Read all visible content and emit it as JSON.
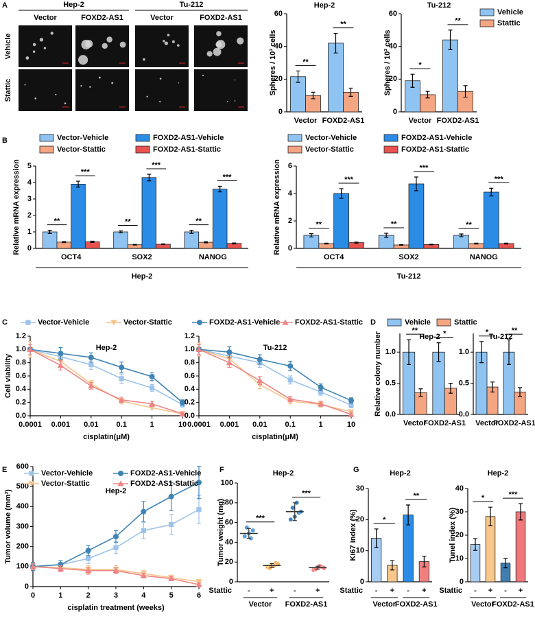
{
  "panel_labels": [
    "A",
    "B",
    "C",
    "D",
    "E",
    "F",
    "G"
  ],
  "panel_a": {
    "cell_lines": [
      "Hep-2",
      "Tu-212"
    ],
    "columns": [
      "Vector",
      "FOXD2-AS1",
      "Vector",
      "FOXD2-AS1"
    ],
    "rows": [
      "Vehicle",
      "Stattic"
    ]
  },
  "chart_data": [
    {
      "type": "bar",
      "title": "Hep-2",
      "ylabel": "Spheres / 10³ cells",
      "categories": [
        "Vector",
        "FOXD2-AS1"
      ],
      "series": [
        {
          "color": "#8fc4f2",
          "values": [
            21.5,
            42
          ],
          "errors": [
            3.5,
            6
          ]
        },
        {
          "color": "#f4a582",
          "values": [
            10,
            12
          ],
          "errors": [
            2,
            2.5
          ]
        }
      ],
      "ylim": [
        0,
        60
      ],
      "yticks": [
        0,
        20,
        40,
        60
      ],
      "significance": [
        [
          "**"
        ],
        [
          "**"
        ]
      ]
    },
    {
      "type": "bar",
      "title": "Tu-212",
      "ylabel": "Spheres / 10³ cells",
      "categories": [
        "Vector",
        "FOXD2-AS1"
      ],
      "series": [
        {
          "name": "Vehicle",
          "color": "#8fc4f2",
          "values": [
            19,
            44
          ],
          "errors": [
            4,
            6
          ]
        },
        {
          "name": "Stattic",
          "color": "#f4a582",
          "values": [
            10.5,
            12.5
          ],
          "errors": [
            2,
            3.5
          ]
        }
      ],
      "ylim": [
        0,
        60
      ],
      "yticks": [
        0,
        20,
        40,
        60
      ],
      "significance": [
        [
          "*"
        ],
        [
          "**"
        ]
      ],
      "legend": "right"
    },
    {
      "type": "bar",
      "ylabel": "Relative mRNA expression",
      "categories": [
        "OCT4",
        "SOX2",
        "NANOG"
      ],
      "group_label": "Hep-2",
      "series": [
        {
          "name": "Vector-Vehicle",
          "color": "#8fc4f2",
          "values": [
            1.0,
            1.0,
            1.0
          ],
          "errors": [
            0.1,
            0.06,
            0.1
          ]
        },
        {
          "name": "Vector-Stattic",
          "color": "#f4a582",
          "values": [
            0.38,
            0.22,
            0.37
          ],
          "errors": [
            0.03,
            0.02,
            0.03
          ]
        },
        {
          "name": "FOXD2-AS1-Vehicle",
          "color": "#2b8ce6",
          "values": [
            3.9,
            4.3,
            3.6
          ],
          "errors": [
            0.18,
            0.2,
            0.17
          ]
        },
        {
          "name": "FOXD2-AS1-Stattic",
          "color": "#e8534f",
          "values": [
            0.4,
            0.25,
            0.3
          ],
          "errors": [
            0.04,
            0.02,
            0.03
          ]
        }
      ],
      "ylim": [
        0,
        5
      ],
      "yticks": [
        0,
        1,
        2,
        3,
        4,
        5
      ],
      "significance": [
        [
          "**",
          "***"
        ],
        [
          "**",
          "***"
        ],
        [
          "**",
          "***"
        ]
      ],
      "legend": "top"
    },
    {
      "type": "bar",
      "ylabel": "Relative mRNA expression",
      "categories": [
        "OCT4",
        "SOX2",
        "NANOG"
      ],
      "group_label": "Tu-212",
      "series": [
        {
          "name": "Vector-Vehicle",
          "color": "#8fc4f2",
          "values": [
            0.95,
            0.95,
            0.95
          ],
          "errors": [
            0.12,
            0.15,
            0.1
          ]
        },
        {
          "name": "Vector-Stattic",
          "color": "#f4a582",
          "values": [
            0.35,
            0.25,
            0.35
          ],
          "errors": [
            0.03,
            0.02,
            0.03
          ]
        },
        {
          "name": "FOXD2-AS1-Vehicle",
          "color": "#2b8ce6",
          "values": [
            4.0,
            4.7,
            4.1
          ],
          "errors": [
            0.35,
            0.5,
            0.28
          ]
        },
        {
          "name": "FOXD2-AS1-Stattic",
          "color": "#e8534f",
          "values": [
            0.42,
            0.28,
            0.35
          ],
          "errors": [
            0.04,
            0.02,
            0.03
          ]
        }
      ],
      "ylim": [
        0,
        6
      ],
      "yticks": [
        0,
        2,
        4,
        6
      ],
      "significance": [
        [
          "**",
          "***"
        ],
        [
          "**",
          "***"
        ],
        [
          "**",
          "***"
        ]
      ],
      "legend": "top"
    },
    {
      "type": "line",
      "title": "Hep-2",
      "xlabel": "cisplatin(μM)",
      "ylabel": "Cell viability",
      "xscale": "log",
      "x": [
        0.0001,
        0.001,
        0.01,
        0.1,
        1,
        10
      ],
      "xlim": [
        0.0001,
        10
      ],
      "xticks": [
        0.0001,
        0.001,
        0.01,
        0.1,
        1,
        10
      ],
      "ylim": [
        0,
        1.2
      ],
      "yticks": [
        {
          "value": 0,
          "label": "0.0"
        },
        0.2,
        0.4,
        0.6,
        0.8,
        {
          "value": 1,
          "label": "1.0"
        },
        1.2
      ],
      "series": [
        {
          "name": "Vector-Vehicle",
          "color": "#9dc3ea",
          "marker": "square",
          "values": [
            1.0,
            0.89,
            0.77,
            0.56,
            0.42,
            0.17
          ],
          "errors": [
            0.08,
            0.06,
            0.07,
            0.07,
            0.05,
            0.04
          ]
        },
        {
          "name": "Vector-Stattic",
          "color": "#f6c48c",
          "marker": "triangle-down",
          "values": [
            1.0,
            0.82,
            0.48,
            0.22,
            0.12,
            0.03
          ],
          "errors": [
            0.12,
            0.07,
            0.05,
            0.04,
            0.03,
            0.03
          ]
        },
        {
          "name": "FOXD2-AS1-Vehicle",
          "color": "#3f84b5",
          "marker": "circle",
          "values": [
            1.0,
            0.94,
            0.88,
            0.73,
            0.59,
            0.2
          ],
          "errors": [
            0.08,
            0.09,
            0.07,
            0.08,
            0.06,
            0.04
          ]
        },
        {
          "name": "FOXD2-AS1-Stattic",
          "color": "#ee8585",
          "marker": "triangle-up",
          "values": [
            1.0,
            0.76,
            0.45,
            0.24,
            0.18,
            0.03
          ],
          "errors": [
            0.08,
            0.07,
            0.05,
            0.04,
            0.04,
            0.03
          ]
        }
      ],
      "legend": "top"
    },
    {
      "type": "line",
      "title": "Tu-212",
      "xlabel": "cisplatin(μM)",
      "xscale": "log",
      "x": [
        0.0001,
        0.001,
        0.01,
        0.1,
        1,
        10
      ],
      "xlim": [
        0.0001,
        10
      ],
      "xticks": [
        0.0001,
        0.001,
        0.01,
        0.1,
        1,
        10
      ],
      "ylim": [
        0,
        1.2
      ],
      "yticks": [
        {
          "value": 0,
          "label": "0.0"
        },
        0.2,
        0.4,
        0.6,
        0.8,
        {
          "value": 1,
          "label": "1.0"
        },
        1.2
      ],
      "series": [
        {
          "color": "#9dc3ea",
          "marker": "square",
          "values": [
            1.0,
            0.9,
            0.8,
            0.54,
            0.36,
            0.16
          ],
          "errors": [
            0.08,
            0.06,
            0.07,
            0.06,
            0.05,
            0.04
          ]
        },
        {
          "color": "#f6c48c",
          "marker": "triangle-down",
          "values": [
            1.0,
            0.86,
            0.47,
            0.22,
            0.17,
            0.06
          ],
          "errors": [
            0.1,
            0.07,
            0.06,
            0.04,
            0.04,
            0.03
          ]
        },
        {
          "color": "#3f84b5",
          "marker": "circle",
          "values": [
            1.0,
            0.96,
            0.85,
            0.75,
            0.43,
            0.23
          ],
          "errors": [
            0.08,
            0.08,
            0.07,
            0.07,
            0.05,
            0.04
          ]
        },
        {
          "color": "#ee8585",
          "marker": "triangle-up",
          "values": [
            1.0,
            0.8,
            0.53,
            0.25,
            0.18,
            0.02
          ],
          "errors": [
            0.08,
            0.07,
            0.06,
            0.04,
            0.04,
            0.03
          ]
        }
      ]
    },
    {
      "type": "bar",
      "title": "Hep-2",
      "ylabel": "Relative colony number",
      "categories": [
        "Vector",
        "FOXD2-AS1"
      ],
      "series": [
        {
          "name": "Vehicle",
          "color": "#8fc4f2",
          "values": [
            1.0,
            1.0
          ],
          "errors": [
            0.2,
            0.15
          ]
        },
        {
          "name": "Stattic",
          "color": "#f4a582",
          "values": [
            0.35,
            0.42
          ],
          "errors": [
            0.06,
            0.08
          ]
        }
      ],
      "ylim": [
        0,
        1.3
      ],
      "yticks": [
        {
          "value": 0,
          "label": "0.0"
        },
        0.5,
        {
          "value": 1,
          "label": "1.0"
        }
      ],
      "significance": [
        [
          "**"
        ],
        [
          "*"
        ]
      ],
      "legend": "top"
    },
    {
      "type": "bar",
      "title": "Tu-212",
      "categories": [
        "Vector",
        "FOXD2-AS1"
      ],
      "series": [
        {
          "color": "#8fc4f2",
          "values": [
            1.0,
            1.0
          ],
          "errors": [
            0.17,
            0.2
          ]
        },
        {
          "color": "#f4a582",
          "values": [
            0.44,
            0.36
          ],
          "errors": [
            0.08,
            0.07
          ]
        }
      ],
      "ylim": [
        0,
        1.3
      ],
      "yticks": [
        {
          "value": 0,
          "label": "0.0"
        },
        0.5,
        {
          "value": 1,
          "label": "1.0"
        }
      ],
      "significance": [
        [
          "*"
        ],
        [
          "**"
        ]
      ]
    },
    {
      "type": "line",
      "title": "Hep-2",
      "xlabel": "cisplatin treatment (weeks)",
      "ylabel": "Tumor volume (mm³)",
      "x": [
        0,
        1,
        2,
        3,
        4,
        5,
        6
      ],
      "xlim": [
        0,
        6
      ],
      "xticks": [
        0,
        1,
        2,
        3,
        4,
        5,
        6
      ],
      "ylim": [
        0,
        600
      ],
      "yticks": [
        0,
        100,
        200,
        300,
        400,
        500,
        600
      ],
      "series": [
        {
          "name": "Vector-Vehicle",
          "color": "#9dc3ea",
          "marker": "square",
          "values": [
            100,
            110,
            140,
            195,
            280,
            310,
            385
          ],
          "errors": [
            20,
            20,
            25,
            30,
            40,
            50,
            70
          ]
        },
        {
          "name": "Vector-Stattic",
          "color": "#f6c48c",
          "marker": "triangle-down",
          "values": [
            100,
            95,
            85,
            85,
            65,
            45,
            25
          ],
          "errors": [
            15,
            15,
            20,
            20,
            15,
            12,
            10
          ]
        },
        {
          "name": "FOXD2-AS1-Vehicle",
          "color": "#3f84b5",
          "marker": "circle",
          "values": [
            100,
            110,
            180,
            250,
            375,
            450,
            520
          ],
          "errors": [
            20,
            20,
            25,
            30,
            50,
            70,
            80
          ]
        },
        {
          "name": "FOXD2-AS1-Stattic",
          "color": "#ee8585",
          "marker": "triangle-up",
          "values": [
            100,
            90,
            80,
            80,
            55,
            40,
            10
          ],
          "errors": [
            15,
            15,
            18,
            15,
            12,
            10,
            10
          ]
        }
      ],
      "legend": "top"
    },
    {
      "type": "dot",
      "title": "Hep-2",
      "ylabel": "Tumor weight (mg)",
      "categories": [
        "-",
        "+",
        "-",
        "+"
      ],
      "row_label": "Stattic",
      "groups": [
        "Vector",
        "FOXD2-AS1"
      ],
      "points": [
        [
          46,
          49,
          52,
          55,
          44
        ],
        [
          15,
          17,
          19,
          14,
          16,
          18
        ],
        [
          63,
          66,
          70,
          75,
          80,
          71
        ],
        [
          12,
          14,
          15,
          13,
          16,
          14
        ]
      ],
      "means": [
        49,
        16.5,
        71,
        14.3
      ],
      "sds": [
        5,
        2,
        9,
        1.5
      ],
      "colors": [
        "#5aa0dd",
        "#f2b061",
        "#3d86c6",
        "#ee7a7a"
      ],
      "ylim": [
        0,
        100
      ],
      "yticks": [
        0,
        20,
        40,
        60,
        80,
        100
      ],
      "significance": [
        [
          "***"
        ],
        [
          "***"
        ]
      ]
    },
    {
      "type": "bar",
      "title": "Hep-2",
      "ylabel": "Ki67 index (%)",
      "categories": [
        "-",
        "+",
        "-",
        "+"
      ],
      "row_label": "Stattic",
      "groups": [
        "Vector",
        "FOXD2-AS1"
      ],
      "series": [
        {
          "colors": [
            "#a8cdf2",
            "#f8c78a",
            "#2b8ce6",
            "#f08080"
          ],
          "values": [
            14,
            5.3,
            21.5,
            6.5
          ],
          "errors": [
            3,
            1.5,
            3.2,
            1.7
          ]
        }
      ],
      "ylim": [
        0,
        30
      ],
      "yticks": [
        0,
        10,
        20,
        30
      ],
      "significance": [
        [
          "*"
        ],
        [
          "**"
        ]
      ]
    },
    {
      "type": "bar",
      "title": "Hep-2",
      "ylabel": "Tunel index (%)",
      "categories": [
        "-",
        "+",
        "-",
        "+"
      ],
      "row_label": "Stattic",
      "groups": [
        "Vector",
        "FOXD2-AS1"
      ],
      "series": [
        {
          "colors": [
            "#a8cdf2",
            "#f8c78a",
            "#3f7fb0",
            "#f0787a"
          ],
          "values": [
            16,
            28,
            8,
            30
          ],
          "errors": [
            2.5,
            4,
            2,
            3.5
          ]
        }
      ],
      "ylim": [
        0,
        40
      ],
      "yticks": [
        0,
        10,
        20,
        30,
        40
      ],
      "significance": [
        [
          "*"
        ],
        [
          "***"
        ]
      ]
    }
  ]
}
